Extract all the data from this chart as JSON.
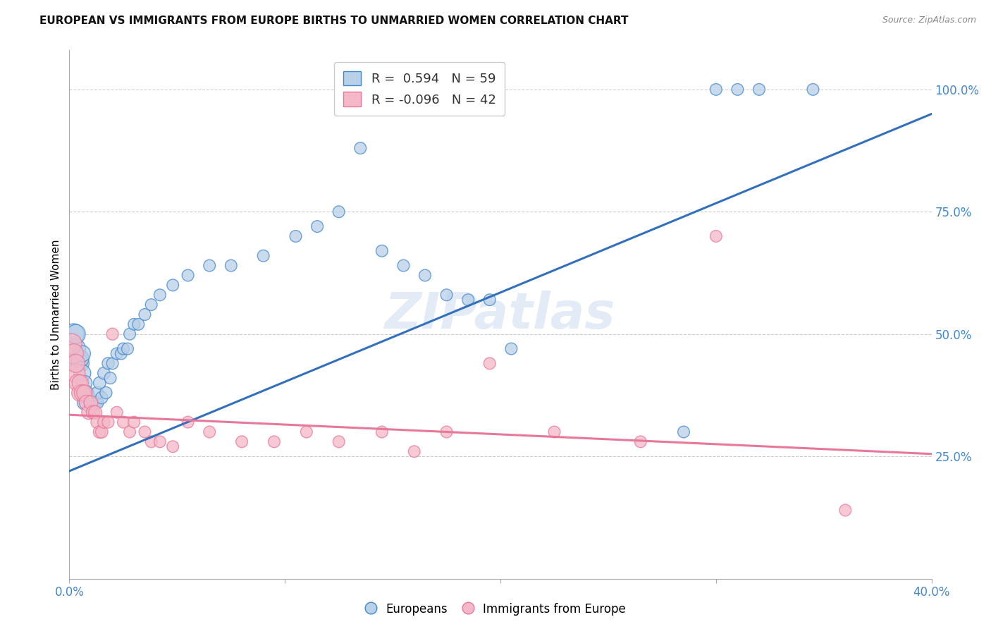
{
  "title": "EUROPEAN VS IMMIGRANTS FROM EUROPE BIRTHS TO UNMARRIED WOMEN CORRELATION CHART",
  "source": "Source: ZipAtlas.com",
  "ylabel": "Births to Unmarried Women",
  "xlim": [
    0.0,
    0.4
  ],
  "ylim": [
    0.0,
    1.08
  ],
  "y_ticks_right": [
    0.25,
    0.5,
    0.75,
    1.0
  ],
  "y_tick_labels_right": [
    "25.0%",
    "50.0%",
    "75.0%",
    "100.0%"
  ],
  "blue_color": "#b8d0e8",
  "pink_color": "#f4b8c8",
  "blue_edge_color": "#4488cc",
  "pink_edge_color": "#e8789a",
  "blue_line_color": "#3370bb",
  "pink_line_color": "#e8789a",
  "watermark_text": "ZIPatlas",
  "legend_line1": "R =  0.594   N = 59",
  "legend_line2": "R = -0.096   N = 42",
  "blue_line_x0": 0.0,
  "blue_line_x1": 0.4,
  "blue_line_y0": 0.22,
  "blue_line_y1": 0.95,
  "pink_line_x0": 0.0,
  "pink_line_x1": 0.4,
  "pink_line_y0": 0.335,
  "pink_line_y1": 0.255,
  "grid_color": "#cccccc",
  "tick_color": "#4488cc",
  "blue_scatter_x": [
    0.001,
    0.002,
    0.003,
    0.003,
    0.004,
    0.004,
    0.005,
    0.005,
    0.006,
    0.006,
    0.007,
    0.007,
    0.008,
    0.008,
    0.009,
    0.01,
    0.01,
    0.011,
    0.012,
    0.013,
    0.013,
    0.014,
    0.015,
    0.016,
    0.017,
    0.018,
    0.019,
    0.02,
    0.022,
    0.024,
    0.025,
    0.027,
    0.028,
    0.03,
    0.032,
    0.035,
    0.038,
    0.042,
    0.048,
    0.055,
    0.065,
    0.075,
    0.09,
    0.105,
    0.115,
    0.125,
    0.135,
    0.145,
    0.155,
    0.165,
    0.175,
    0.185,
    0.195,
    0.205,
    0.285,
    0.3,
    0.31,
    0.32,
    0.345
  ],
  "blue_scatter_y": [
    0.47,
    0.5,
    0.47,
    0.5,
    0.44,
    0.45,
    0.44,
    0.45,
    0.42,
    0.46,
    0.36,
    0.4,
    0.36,
    0.38,
    0.37,
    0.35,
    0.36,
    0.36,
    0.36,
    0.36,
    0.38,
    0.4,
    0.37,
    0.42,
    0.38,
    0.44,
    0.41,
    0.44,
    0.46,
    0.46,
    0.47,
    0.47,
    0.5,
    0.52,
    0.52,
    0.54,
    0.56,
    0.58,
    0.6,
    0.62,
    0.64,
    0.64,
    0.66,
    0.7,
    0.72,
    0.75,
    0.88,
    0.67,
    0.64,
    0.62,
    0.58,
    0.57,
    0.57,
    0.47,
    0.3,
    1.0,
    1.0,
    1.0,
    1.0
  ],
  "blue_scatter_size": [
    500,
    450,
    400,
    380,
    360,
    350,
    330,
    320,
    300,
    280,
    220,
    240,
    220,
    210,
    200,
    180,
    190,
    175,
    170,
    165,
    160,
    160,
    155,
    155,
    150,
    150,
    145,
    145,
    145,
    145,
    145,
    145,
    145,
    145,
    145,
    145,
    145,
    145,
    145,
    145,
    145,
    145,
    145,
    145,
    145,
    145,
    145,
    145,
    145,
    145,
    145,
    145,
    145,
    145,
    145,
    145,
    145,
    145,
    145
  ],
  "pink_scatter_x": [
    0.001,
    0.002,
    0.003,
    0.003,
    0.004,
    0.005,
    0.005,
    0.006,
    0.007,
    0.008,
    0.009,
    0.01,
    0.011,
    0.012,
    0.013,
    0.014,
    0.015,
    0.016,
    0.018,
    0.02,
    0.022,
    0.025,
    0.028,
    0.03,
    0.035,
    0.038,
    0.042,
    0.048,
    0.055,
    0.065,
    0.08,
    0.095,
    0.11,
    0.125,
    0.145,
    0.16,
    0.175,
    0.195,
    0.225,
    0.265,
    0.3,
    0.36
  ],
  "pink_scatter_y": [
    0.48,
    0.46,
    0.42,
    0.44,
    0.4,
    0.38,
    0.4,
    0.38,
    0.38,
    0.36,
    0.34,
    0.36,
    0.34,
    0.34,
    0.32,
    0.3,
    0.3,
    0.32,
    0.32,
    0.5,
    0.34,
    0.32,
    0.3,
    0.32,
    0.3,
    0.28,
    0.28,
    0.27,
    0.32,
    0.3,
    0.28,
    0.28,
    0.3,
    0.28,
    0.3,
    0.26,
    0.3,
    0.44,
    0.3,
    0.28,
    0.7,
    0.14
  ],
  "pink_scatter_size": [
    440,
    400,
    360,
    340,
    320,
    300,
    280,
    270,
    250,
    230,
    210,
    200,
    190,
    185,
    175,
    165,
    160,
    155,
    150,
    150,
    145,
    145,
    145,
    145,
    145,
    145,
    145,
    145,
    145,
    145,
    145,
    145,
    145,
    145,
    145,
    145,
    145,
    145,
    145,
    145,
    145,
    145
  ]
}
